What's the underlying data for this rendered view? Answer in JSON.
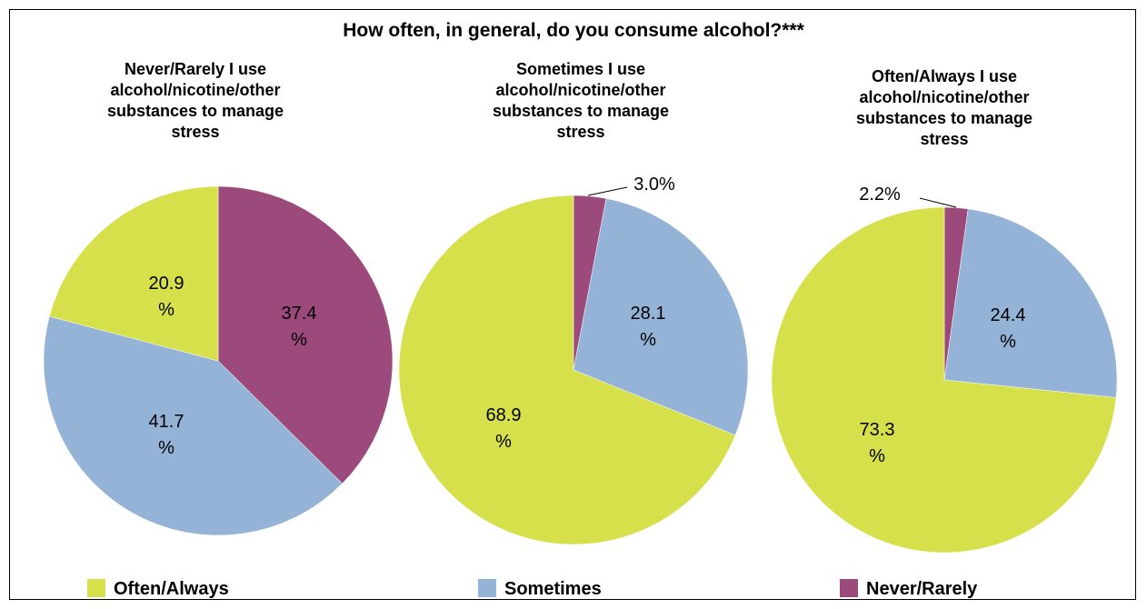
{
  "chart_data": {
    "type": "pie",
    "title": "How often, in general, do you consume alcohol?***",
    "categories": [
      "Often/Always",
      "Sometimes",
      "Never/Rarely"
    ],
    "colors": {
      "Often/Always": "#d5e04b",
      "Sometimes": "#95b3d7",
      "Never/Rarely": "#9c4a7c"
    },
    "legend_position": "bottom",
    "pies": [
      {
        "subtitle_lines": [
          "Never/Rarely I use",
          "alcohol/nicotine/other",
          "substances to manage",
          "stress"
        ],
        "values": [
          20.9,
          41.7,
          37.4
        ],
        "labels": [
          [
            "20.9",
            "%"
          ],
          [
            "41.7",
            "%"
          ],
          [
            "37.4",
            "%"
          ]
        ]
      },
      {
        "subtitle_lines": [
          "Sometimes I use",
          "alcohol/nicotine/other",
          "substances to manage",
          "stress"
        ],
        "values": [
          68.9,
          28.1,
          3.0
        ],
        "labels": [
          [
            "68.9",
            "%"
          ],
          [
            "28.1",
            "%"
          ],
          [
            "3.0%"
          ]
        ]
      },
      {
        "subtitle_lines": [
          "Often/Always I use",
          "alcohol/nicotine/other",
          "substances to manage",
          "stress"
        ],
        "values": [
          73.3,
          24.4,
          2.2
        ],
        "labels": [
          [
            "73.3",
            "%"
          ],
          [
            "24.4",
            "%"
          ],
          [
            "2.2%"
          ]
        ]
      }
    ]
  }
}
